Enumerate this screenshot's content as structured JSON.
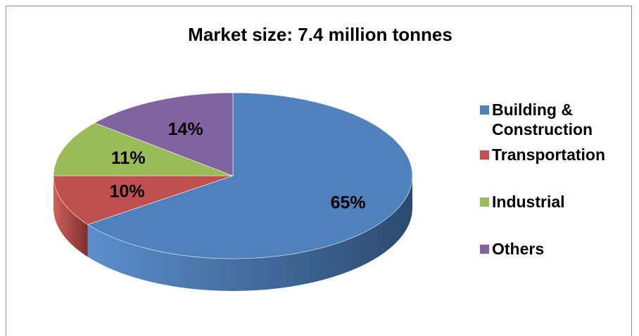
{
  "chart_data": {
    "type": "pie",
    "title": "Market size: 7.4 million tonnes",
    "legend_position": "right",
    "three_d": true,
    "slices": [
      {
        "label": "Building & Construction",
        "value": 65,
        "data_label": "65%",
        "color": "#4F81BD",
        "dark": "#2C4A70",
        "light": "#5B8FCC"
      },
      {
        "label": "Transportation",
        "value": 10,
        "data_label": "10%",
        "color": "#C0504D",
        "dark": "#7E2F2D",
        "light": "#D0605C"
      },
      {
        "label": "Industrial",
        "value": 11,
        "data_label": "11%",
        "color": "#9BBB59",
        "dark": "#5F7A30",
        "light": "#ABCB69"
      },
      {
        "label": "Others",
        "value": 14,
        "data_label": "14%",
        "color": "#8064A2",
        "dark": "#523E6C",
        "light": "#9074B2"
      }
    ]
  }
}
